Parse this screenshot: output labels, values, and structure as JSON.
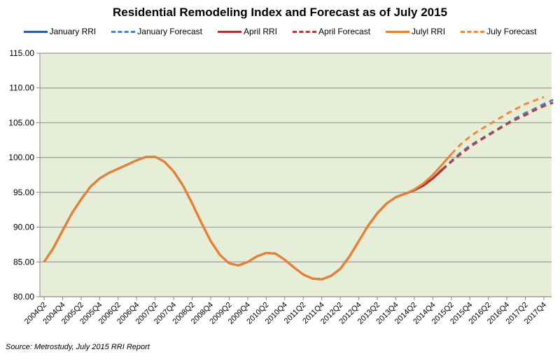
{
  "chart_data": {
    "type": "line",
    "title": "Residential Remodeling Index and Forecast as of July 2015",
    "xlabel": "",
    "ylabel": "",
    "ylim": [
      80,
      115
    ],
    "yticks": [
      "80.00",
      "85.00",
      "90.00",
      "95.00",
      "100.00",
      "105.00",
      "110.00",
      "115.00"
    ],
    "grid": true,
    "legend_position": "top",
    "background_color": "#e6eed8",
    "categories": [
      "2004Q2",
      "2004Q3",
      "2004Q4",
      "2005Q1",
      "2005Q2",
      "2005Q3",
      "2005Q4",
      "2006Q1",
      "2006Q2",
      "2006Q3",
      "2006Q4",
      "2007Q1",
      "2007Q2",
      "2007Q3",
      "2007Q4",
      "2008Q1",
      "2008Q2",
      "2008Q3",
      "2008Q4",
      "2009Q1",
      "2009Q2",
      "2009Q3",
      "2009Q4",
      "2010Q1",
      "2010Q2",
      "2010Q3",
      "2010Q4",
      "2011Q1",
      "2011Q2",
      "2011Q3",
      "2011Q4",
      "2012Q1",
      "2012Q2",
      "2012Q3",
      "2012Q4",
      "2013Q1",
      "2013Q2",
      "2013Q3",
      "2013Q4",
      "2014Q1",
      "2014Q2",
      "2014Q3",
      "2014Q4",
      "2015Q1",
      "2015Q2",
      "2015Q3",
      "2015Q4",
      "2016Q1",
      "2016Q2",
      "2016Q3",
      "2016Q4",
      "2017Q1",
      "2017Q2",
      "2017Q3",
      "2017Q4"
    ],
    "xtick_labels": [
      "2004Q2",
      "2004Q4",
      "2005Q2",
      "2005Q4",
      "2006Q2",
      "2006Q4",
      "2007Q2",
      "2007Q4",
      "2008Q2",
      "2008Q4",
      "2009Q2",
      "2009Q4",
      "2010Q2",
      "2010Q4",
      "2011Q2",
      "2011Q4",
      "2012Q2",
      "2012Q4",
      "2013Q2",
      "2013Q4",
      "2014Q2",
      "2014Q4",
      "2015Q2",
      "2015Q4",
      "2016Q2",
      "2016Q4",
      "2017Q2",
      "2017Q4"
    ],
    "series": [
      {
        "name": "January RRI",
        "color": "#2e5ca6",
        "dashed": false,
        "start_index": 0,
        "values": [
          85.0,
          87.0,
          89.5,
          92.0,
          94.0,
          95.8,
          97.0,
          97.8,
          98.4,
          99.0,
          99.6,
          100.1,
          100.1,
          99.4,
          98.0,
          96.0,
          93.4,
          90.6,
          88.0,
          86.0,
          84.8,
          84.5,
          85.0,
          85.8,
          86.3,
          86.2,
          85.3,
          84.2,
          83.2,
          82.6,
          82.5,
          83.0,
          84.0,
          85.8,
          88.0,
          90.2,
          92.0,
          93.4,
          94.3,
          94.8,
          95.3,
          96.0,
          97.0,
          98.3
        ]
      },
      {
        "name": "January Forecast",
        "color": "#4a7fcb",
        "dashed": true,
        "start_index": 43,
        "values": [
          98.3,
          99.5,
          100.7,
          101.7,
          102.5,
          103.3,
          104.1,
          104.9,
          105.7,
          106.4,
          107.0,
          107.7,
          108.3
        ]
      },
      {
        "name": "April RRI",
        "color": "#b03236",
        "dashed": false,
        "start_index": 0,
        "values": [
          85.0,
          87.0,
          89.5,
          92.0,
          94.0,
          95.8,
          97.0,
          97.8,
          98.4,
          99.0,
          99.6,
          100.1,
          100.1,
          99.4,
          98.0,
          96.0,
          93.4,
          90.6,
          88.0,
          86.0,
          84.8,
          84.5,
          85.0,
          85.8,
          86.3,
          86.2,
          85.3,
          84.2,
          83.2,
          82.6,
          82.5,
          83.0,
          84.0,
          85.8,
          88.0,
          90.2,
          92.0,
          93.4,
          94.3,
          94.8,
          95.3,
          96.0,
          97.0,
          98.2
        ]
      },
      {
        "name": "April Forecast",
        "color": "#c0393d",
        "dashed": true,
        "start_index": 43,
        "values": [
          98.2,
          99.4,
          100.5,
          101.5,
          102.4,
          103.2,
          104.0,
          104.8,
          105.5,
          106.1,
          106.8,
          107.4,
          107.9
        ]
      },
      {
        "name": "Julyl RRI",
        "color": "#f07f2c",
        "dashed": false,
        "start_index": 0,
        "values": [
          85.0,
          87.0,
          89.5,
          92.0,
          94.0,
          95.8,
          97.0,
          97.8,
          98.4,
          99.0,
          99.6,
          100.1,
          100.1,
          99.4,
          98.0,
          96.0,
          93.4,
          90.6,
          88.0,
          86.0,
          84.8,
          84.5,
          85.0,
          85.8,
          86.3,
          86.2,
          85.3,
          84.2,
          83.2,
          82.6,
          82.5,
          83.0,
          84.0,
          85.8,
          88.0,
          90.2,
          92.0,
          93.4,
          94.3,
          94.8,
          95.4,
          96.3,
          97.5,
          99.0,
          100.5
        ]
      },
      {
        "name": "July Forecast",
        "color": "#f5893a",
        "dashed": true,
        "start_index": 44,
        "values": [
          100.5,
          101.9,
          103.0,
          103.9,
          104.7,
          105.5,
          106.3,
          107.0,
          107.7,
          108.2,
          108.7
        ]
      }
    ]
  },
  "legend": [
    {
      "label": "January RRI",
      "color": "#2e5ca6",
      "dashed": false
    },
    {
      "label": "January Forecast",
      "color": "#4a7fcb",
      "dashed": true
    },
    {
      "label": "April RRI",
      "color": "#b03236",
      "dashed": false
    },
    {
      "label": "April Forecast",
      "color": "#c0393d",
      "dashed": true
    },
    {
      "label": "Julyl RRI",
      "color": "#f07f2c",
      "dashed": false
    },
    {
      "label": "July Forecast",
      "color": "#f5893a",
      "dashed": true
    }
  ],
  "source": "Source:  Metrostudy, July 2015 RRI Report"
}
